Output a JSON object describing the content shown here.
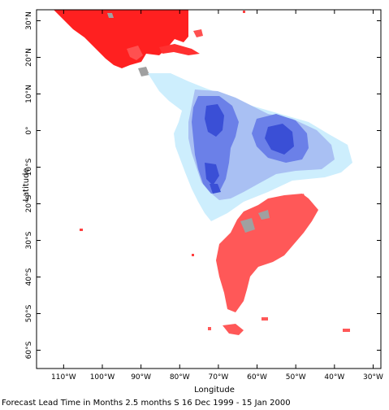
{
  "map": {
    "x_axis_title": "Longitude",
    "y_axis_title": "Latitude",
    "x_ticks": [
      {
        "lon": -110,
        "label": "110°W"
      },
      {
        "lon": -100,
        "label": "100°W"
      },
      {
        "lon": -90,
        "label": "90°W"
      },
      {
        "lon": -80,
        "label": "80°W"
      },
      {
        "lon": -70,
        "label": "70°W"
      },
      {
        "lon": -60,
        "label": "60°W"
      },
      {
        "lon": -50,
        "label": "50°W"
      },
      {
        "lon": -40,
        "label": "40°W"
      },
      {
        "lon": -30,
        "label": "30°W"
      }
    ],
    "y_ticks": [
      {
        "lat": 30,
        "label": "30°N"
      },
      {
        "lat": 20,
        "label": "20°N"
      },
      {
        "lat": 10,
        "label": "10°N"
      },
      {
        "lat": 0,
        "label": "0°"
      },
      {
        "lat": -10,
        "label": "10°S"
      },
      {
        "lat": -20,
        "label": "20°S"
      },
      {
        "lat": -30,
        "label": "30°S"
      },
      {
        "lat": -40,
        "label": "40°S"
      },
      {
        "lat": -50,
        "label": "50°S"
      },
      {
        "lat": -60,
        "label": "60°S"
      }
    ],
    "extent": {
      "lon_min": -117,
      "lon_max": -28,
      "lat_min": -65,
      "lat_max": 33
    },
    "colors": {
      "warm": "#ff5a5a",
      "warm_strong": "#ff1e1e",
      "cool_light": "#cceeff",
      "cool_medium": "#a8bff2",
      "cool_strong": "#6478e6",
      "cool_deep": "#3246d2",
      "missing": "#a0a0a0"
    }
  },
  "caption": "Forecast Lead Time in Months 2.5 months S 16 Dec 1999 - 15 Jan 2000"
}
